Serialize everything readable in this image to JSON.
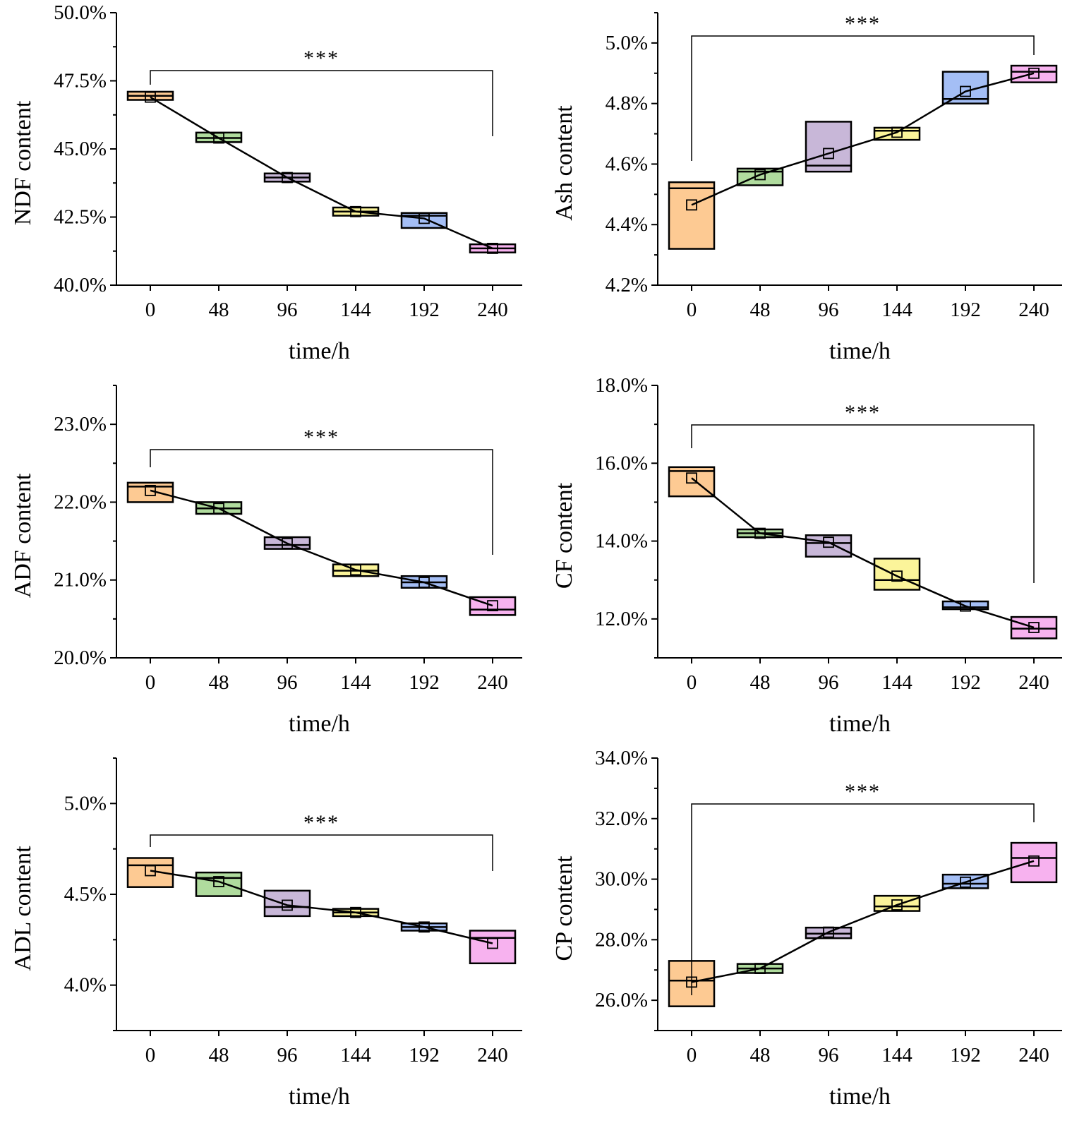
{
  "chart_data": [
    {
      "type": "box",
      "ylabel": "NDF content",
      "xlabel": "time/h",
      "categories": [
        "0",
        "48",
        "96",
        "144",
        "192",
        "240"
      ],
      "ylim": [
        40.0,
        50.0
      ],
      "yticks": [
        40.0,
        42.5,
        45.0,
        47.5,
        50.0
      ],
      "ytick_labels": [
        "40.0%",
        "42.5%",
        "45.0%",
        "47.5%",
        "50.0%"
      ],
      "boxes": [
        {
          "q1": 46.8,
          "q3": 47.1,
          "median": 46.95,
          "mean": 46.9
        },
        {
          "q1": 45.25,
          "q3": 45.6,
          "median": 45.4,
          "mean": 45.4
        },
        {
          "q1": 43.8,
          "q3": 44.1,
          "median": 43.95,
          "mean": 43.95
        },
        {
          "q1": 42.55,
          "q3": 42.85,
          "median": 42.7,
          "mean": 42.7
        },
        {
          "q1": 42.1,
          "q3": 42.65,
          "median": 42.55,
          "mean": 42.45
        },
        {
          "q1": 41.2,
          "q3": 41.5,
          "median": 41.35,
          "mean": 41.35
        }
      ],
      "significance": {
        "label": "***",
        "from": "0",
        "to": "240"
      }
    },
    {
      "type": "box",
      "ylabel": "Ash content",
      "xlabel": "time/h",
      "categories": [
        "0",
        "48",
        "96",
        "144",
        "192",
        "240"
      ],
      "ylim": [
        4.2,
        5.1
      ],
      "yticks": [
        4.2,
        4.4,
        4.6,
        4.8,
        5.0
      ],
      "ytick_labels": [
        "4.2%",
        "4.4%",
        "4.6%",
        "4.8%",
        "5.0%"
      ],
      "boxes": [
        {
          "q1": 4.32,
          "q3": 4.54,
          "median": 4.52,
          "mean": 4.465
        },
        {
          "q1": 4.53,
          "q3": 4.585,
          "median": 4.575,
          "mean": 4.565
        },
        {
          "q1": 4.575,
          "q3": 4.74,
          "median": 4.595,
          "mean": 4.635
        },
        {
          "q1": 4.68,
          "q3": 4.72,
          "median": 4.71,
          "mean": 4.705
        },
        {
          "q1": 4.8,
          "q3": 4.905,
          "median": 4.815,
          "mean": 4.84
        },
        {
          "q1": 4.87,
          "q3": 4.925,
          "median": 4.905,
          "mean": 4.9
        }
      ],
      "significance": {
        "label": "***",
        "from": "0",
        "to": "240"
      }
    },
    {
      "type": "box",
      "ylabel": "ADF content",
      "xlabel": "time/h",
      "categories": [
        "0",
        "48",
        "96",
        "144",
        "192",
        "240"
      ],
      "ylim": [
        20.0,
        23.5
      ],
      "yticks": [
        20.0,
        21.0,
        22.0,
        23.0
      ],
      "ytick_labels": [
        "20.0%",
        "21.0%",
        "22.0%",
        "23.0%"
      ],
      "boxes": [
        {
          "q1": 22.0,
          "q3": 22.25,
          "median": 22.2,
          "mean": 22.15
        },
        {
          "q1": 21.85,
          "q3": 22.0,
          "median": 21.92,
          "mean": 21.92
        },
        {
          "q1": 21.4,
          "q3": 21.55,
          "median": 21.45,
          "mean": 21.47
        },
        {
          "q1": 21.05,
          "q3": 21.2,
          "median": 21.12,
          "mean": 21.13
        },
        {
          "q1": 20.9,
          "q3": 21.05,
          "median": 20.97,
          "mean": 20.97
        },
        {
          "q1": 20.55,
          "q3": 20.78,
          "median": 20.62,
          "mean": 20.67
        }
      ],
      "significance": {
        "label": "***",
        "from": "0",
        "to": "240"
      }
    },
    {
      "type": "box",
      "ylabel": "CF content",
      "xlabel": "time/h",
      "categories": [
        "0",
        "48",
        "96",
        "144",
        "192",
        "240"
      ],
      "ylim": [
        11.0,
        18.0
      ],
      "yticks": [
        12.0,
        14.0,
        16.0,
        18.0
      ],
      "ytick_labels": [
        "12.0%",
        "14.0%",
        "16.0%",
        "18.0%"
      ],
      "boxes": [
        {
          "q1": 15.15,
          "q3": 15.9,
          "median": 15.8,
          "mean": 15.62
        },
        {
          "q1": 14.1,
          "q3": 14.3,
          "median": 14.2,
          "mean": 14.2
        },
        {
          "q1": 13.6,
          "q3": 14.15,
          "median": 13.95,
          "mean": 13.97
        },
        {
          "q1": 12.75,
          "q3": 13.55,
          "median": 13.0,
          "mean": 13.1
        },
        {
          "q1": 12.25,
          "q3": 12.45,
          "median": 12.3,
          "mean": 12.33
        },
        {
          "q1": 11.5,
          "q3": 12.05,
          "median": 11.75,
          "mean": 11.78
        }
      ],
      "significance": {
        "label": "***",
        "from": "0",
        "to": "240"
      }
    },
    {
      "type": "box",
      "ylabel": "ADL content",
      "xlabel": "time/h",
      "categories": [
        "0",
        "48",
        "96",
        "144",
        "192",
        "240"
      ],
      "ylim": [
        3.75,
        5.25
      ],
      "yticks": [
        4.0,
        4.5,
        5.0
      ],
      "ytick_labels": [
        "4.0%",
        "4.5%",
        "5.0%"
      ],
      "boxes": [
        {
          "q1": 4.54,
          "q3": 4.7,
          "median": 4.66,
          "mean": 4.63
        },
        {
          "q1": 4.49,
          "q3": 4.62,
          "median": 4.59,
          "mean": 4.57
        },
        {
          "q1": 4.38,
          "q3": 4.52,
          "median": 4.43,
          "mean": 4.44
        },
        {
          "q1": 4.38,
          "q3": 4.42,
          "median": 4.4,
          "mean": 4.4
        },
        {
          "q1": 4.3,
          "q3": 4.34,
          "median": 4.32,
          "mean": 4.32
        },
        {
          "q1": 4.12,
          "q3": 4.3,
          "median": 4.26,
          "mean": 4.23
        }
      ],
      "significance": {
        "label": "***",
        "from": "0",
        "to": "240"
      }
    },
    {
      "type": "box",
      "ylabel": "CP content",
      "xlabel": "time/h",
      "categories": [
        "0",
        "48",
        "96",
        "144",
        "192",
        "240"
      ],
      "ylim": [
        25.0,
        34.0
      ],
      "yticks": [
        26.0,
        28.0,
        30.0,
        32.0,
        34.0
      ],
      "ytick_labels": [
        "26.0%",
        "28.0%",
        "30.0%",
        "32.0%",
        "34.0%"
      ],
      "boxes": [
        {
          "q1": 25.8,
          "q3": 27.3,
          "median": 26.65,
          "mean": 26.6
        },
        {
          "q1": 26.9,
          "q3": 27.2,
          "median": 27.05,
          "mean": 27.05
        },
        {
          "q1": 28.05,
          "q3": 28.4,
          "median": 28.2,
          "mean": 28.25
        },
        {
          "q1": 28.95,
          "q3": 29.45,
          "median": 29.1,
          "mean": 29.15
        },
        {
          "q1": 29.7,
          "q3": 30.15,
          "median": 29.85,
          "mean": 29.9
        },
        {
          "q1": 29.9,
          "q3": 31.2,
          "median": 30.7,
          "mean": 30.6
        }
      ],
      "significance": {
        "label": "***",
        "from": "0",
        "to": "240"
      }
    }
  ],
  "box_colors": [
    "#fdca93",
    "#b0dc9e",
    "#c8b7d8",
    "#fbf49a",
    "#a4bef5",
    "#f7b2ef"
  ]
}
